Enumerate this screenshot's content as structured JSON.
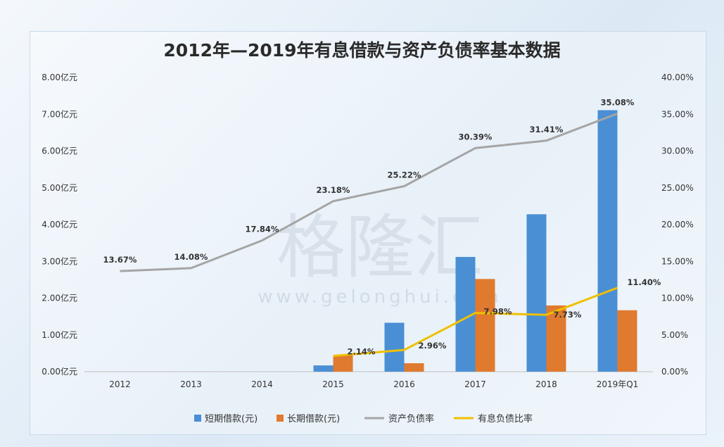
{
  "chart_data": {
    "type": "bar",
    "title": "2012年—2019年有息借款与资产负债率基本数据",
    "categories": [
      "2012",
      "2013",
      "2014",
      "2015",
      "2016",
      "2017",
      "2018",
      "2019年Q1"
    ],
    "series": [
      {
        "name": "短期借款(元)",
        "kind": "bar",
        "axis": "left",
        "color": "#4a8fd4",
        "values": [
          0,
          0,
          0,
          0.17,
          1.33,
          3.12,
          4.28,
          7.11
        ]
      },
      {
        "name": "长期借款(元)",
        "kind": "bar",
        "axis": "left",
        "color": "#e07a2e",
        "values": [
          0,
          0,
          0,
          0.44,
          0.23,
          2.52,
          1.8,
          1.67
        ]
      },
      {
        "name": "资产负债率",
        "kind": "line",
        "axis": "right",
        "color": "#a5a5a5",
        "values": [
          13.67,
          14.08,
          17.84,
          23.18,
          25.22,
          30.39,
          31.41,
          35.08
        ],
        "labels": [
          "13.67%",
          "14.08%",
          "17.84%",
          "23.18%",
          "25.22%",
          "30.39%",
          "31.41%",
          "35.08%"
        ]
      },
      {
        "name": "有息负债比率",
        "kind": "line",
        "axis": "right",
        "color": "#f0c000",
        "values": [
          null,
          null,
          null,
          2.14,
          2.96,
          7.98,
          7.73,
          11.4
        ],
        "labels": [
          "",
          "",
          "",
          "2.14%",
          "2.96%",
          "7.98%",
          "7.73%",
          "11.40%"
        ]
      }
    ],
    "left_axis": {
      "ylim": [
        0,
        8
      ],
      "ticks": [
        0,
        1,
        2,
        3,
        4,
        5,
        6,
        7,
        8
      ],
      "tick_labels": [
        "0.00亿元",
        "1.00亿元",
        "2.00亿元",
        "3.00亿元",
        "4.00亿元",
        "5.00亿元",
        "6.00亿元",
        "7.00亿元",
        "8.00亿元"
      ]
    },
    "right_axis": {
      "ylim": [
        0,
        40
      ],
      "ticks": [
        0,
        5,
        10,
        15,
        20,
        25,
        30,
        35,
        40
      ],
      "tick_labels": [
        "0.00%",
        "5.00%",
        "10.00%",
        "15.00%",
        "20.00%",
        "25.00%",
        "30.00%",
        "35.00%",
        "40.00%"
      ]
    },
    "grid": false,
    "legend_position": "bottom"
  },
  "watermark": {
    "text": "格隆汇",
    "url": "www.gelonghui.com"
  }
}
